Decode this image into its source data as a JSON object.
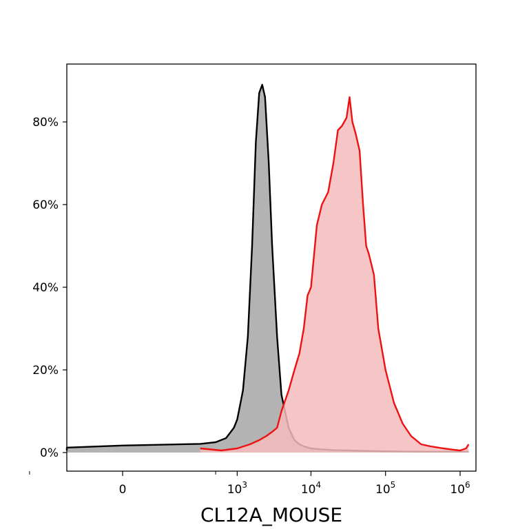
{
  "chart_data": {
    "type": "area",
    "xlabel": "CL12A_MOUSE",
    "ylabel": "",
    "x_scale": "biexponential (linear near 0, log above ~10^3)",
    "ylim": [
      0,
      0.9
    ],
    "grid": false,
    "legend": "none",
    "y_ticks": [
      {
        "value": 0.0,
        "label": "0%"
      },
      {
        "value": 0.2,
        "label": "20%"
      },
      {
        "value": 0.4,
        "label": "40%"
      },
      {
        "value": 0.6,
        "label": "60%"
      },
      {
        "value": 0.8,
        "label": "80%"
      }
    ],
    "x_ticks": [
      {
        "value": 0,
        "base": "0",
        "exp": ""
      },
      {
        "value": 1000,
        "base": "10",
        "exp": "3"
      },
      {
        "value": 10000,
        "base": "10",
        "exp": "4"
      },
      {
        "value": 100000,
        "base": "10",
        "exp": "5"
      },
      {
        "value": 1000000,
        "base": "10",
        "exp": "6"
      }
    ],
    "x_minor_ticks": [
      -500,
      500
    ],
    "series": [
      {
        "color_line": "#000000",
        "color_fill": "#b3b3b3",
        "x": [
          -1500,
          -1000,
          -500,
          0,
          300,
          500,
          700,
          900,
          1000,
          1200,
          1400,
          1600,
          1800,
          2000,
          2200,
          2400,
          2700,
          3000,
          3500,
          4000,
          5000,
          6000,
          7000,
          8000,
          10000,
          13000,
          20000,
          50000,
          100000,
          300000,
          1000000,
          1300000
        ],
        "y": [
          0.005,
          0.008,
          0.012,
          0.017,
          0.021,
          0.025,
          0.035,
          0.06,
          0.08,
          0.15,
          0.28,
          0.5,
          0.75,
          0.87,
          0.89,
          0.86,
          0.7,
          0.5,
          0.28,
          0.14,
          0.06,
          0.03,
          0.02,
          0.015,
          0.01,
          0.008,
          0.006,
          0.004,
          0.003,
          0.002,
          0.002,
          0.002
        ]
      },
      {
        "color_line": "#ee1111",
        "color_fill": "#f5bcbc",
        "x": [
          300,
          600,
          1000,
          1500,
          2000,
          2500,
          3000,
          3500,
          4000,
          5000,
          6000,
          7000,
          8000,
          9000,
          10000,
          12000,
          14000,
          17000,
          20000,
          23000,
          26000,
          30000,
          33000,
          36000,
          40000,
          45000,
          50000,
          55000,
          60000,
          70000,
          80000,
          100000,
          130000,
          170000,
          220000,
          300000,
          400000,
          600000,
          800000,
          1000000,
          1200000,
          1300000
        ],
        "y": [
          0.01,
          0.005,
          0.01,
          0.02,
          0.03,
          0.04,
          0.05,
          0.06,
          0.1,
          0.15,
          0.2,
          0.24,
          0.3,
          0.38,
          0.4,
          0.55,
          0.6,
          0.63,
          0.7,
          0.78,
          0.79,
          0.81,
          0.86,
          0.8,
          0.77,
          0.73,
          0.6,
          0.5,
          0.48,
          0.43,
          0.3,
          0.2,
          0.12,
          0.07,
          0.04,
          0.02,
          0.015,
          0.01,
          0.007,
          0.005,
          0.01,
          0.02
        ]
      }
    ]
  }
}
